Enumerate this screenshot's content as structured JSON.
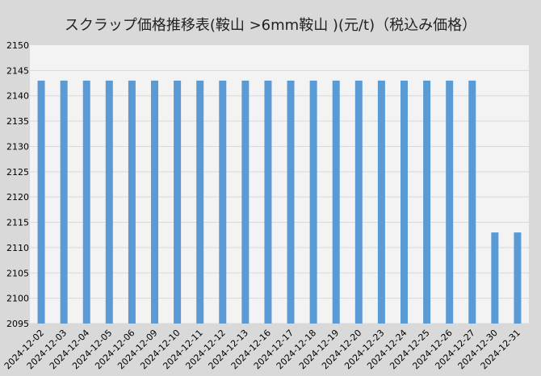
{
  "chart_data": {
    "type": "bar",
    "title": "スクラップ価格推移表(鞍山 >6mm鞍山 )(元/t)（税込み価格）",
    "xlabel": "",
    "ylabel": "",
    "ylim": [
      2095,
      2150
    ],
    "yticks": [
      2095,
      2100,
      2105,
      2110,
      2115,
      2120,
      2125,
      2130,
      2135,
      2140,
      2145,
      2150
    ],
    "grid": true,
    "legend": "none",
    "categories": [
      "2024-12-02",
      "2024-12-03",
      "2024-12-04",
      "2024-12-05",
      "2024-12-06",
      "2024-12-09",
      "2024-12-10",
      "2024-12-11",
      "2024-12-12",
      "2024-12-13",
      "2024-12-16",
      "2024-12-17",
      "2024-12-18",
      "2024-12-19",
      "2024-12-20",
      "2024-12-23",
      "2024-12-24",
      "2024-12-25",
      "2024-12-26",
      "2024-12-27",
      "2024-12-30",
      "2024-12-31"
    ],
    "values": [
      2143,
      2143,
      2143,
      2143,
      2143,
      2143,
      2143,
      2143,
      2143,
      2143,
      2143,
      2143,
      2143,
      2143,
      2143,
      2143,
      2143,
      2143,
      2143,
      2143,
      2113,
      2113
    ],
    "colors": {
      "bar": "#5b9bd5",
      "plot_bg": "#f3f3f3",
      "background": "#d9d9d9",
      "grid": "#d9d9d9"
    }
  }
}
